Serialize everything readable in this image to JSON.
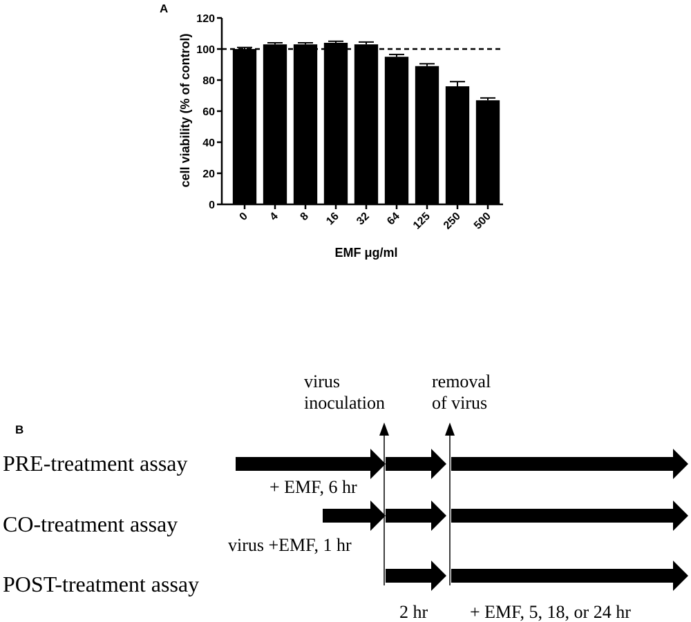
{
  "panel_a_label": "A",
  "panel_b_label": "B",
  "chart_data": {
    "type": "bar",
    "xlabel": "EMF μg/ml",
    "ylabel": "cell viability (% of control)",
    "categories": [
      "0",
      "4",
      "8",
      "16",
      "32",
      "64",
      "125",
      "250",
      "500"
    ],
    "values": [
      100,
      103,
      103,
      104,
      103,
      95,
      89,
      76,
      67
    ],
    "errors": [
      1,
      1,
      1,
      1,
      1.5,
      1.5,
      1.5,
      3,
      1.5
    ],
    "yticks": [
      "0",
      "20",
      "40",
      "60",
      "80",
      "100",
      "120"
    ],
    "ylim": [
      0,
      120
    ],
    "reference_line": 100,
    "grid": false,
    "bar_color": "#000000"
  },
  "diagram": {
    "events": {
      "inoculation": "virus\ninoculation",
      "removal": "removal\nof virus"
    },
    "assays": [
      {
        "label": "PRE-treatment assay",
        "note": "+ EMF, 6 hr"
      },
      {
        "label": "CO-treatment assay",
        "note": "virus +EMF, 1 hr"
      },
      {
        "label": "POST-treatment assay",
        "note": ""
      }
    ],
    "bottom_notes": {
      "infection": "2 hr",
      "post": "+ EMF,  5, 18, or 24 hr"
    }
  }
}
